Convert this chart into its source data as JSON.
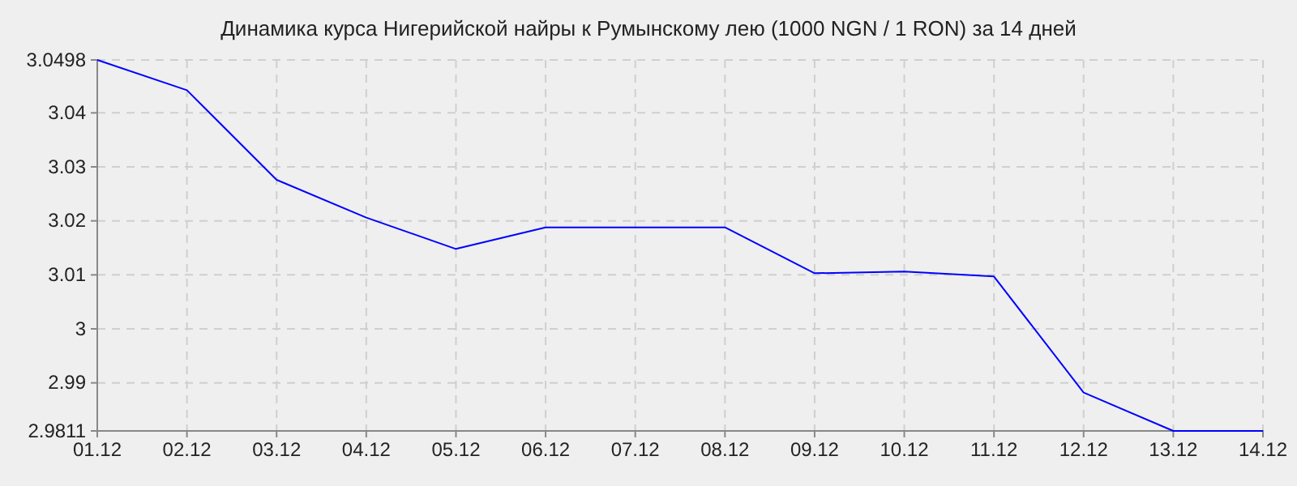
{
  "chart_data": {
    "type": "line",
    "title": "Динамика курса Нигерийской найры к Румынскому лею (1000 NGN / 1 RON) за 14 дней",
    "categories": [
      "01.12",
      "02.12",
      "03.12",
      "04.12",
      "05.12",
      "06.12",
      "07.12",
      "08.12",
      "09.12",
      "10.12",
      "11.12",
      "12.12",
      "13.12",
      "14.12"
    ],
    "series": [
      {
        "color": "#0000ff",
        "values": [
          3.0498,
          3.0442,
          3.0276,
          3.0206,
          3.0148,
          3.0188,
          3.0188,
          3.0188,
          3.0103,
          3.0106,
          3.0097,
          2.9882,
          2.9811,
          2.9811
        ]
      }
    ],
    "ylim": [
      2.9811,
      3.0498
    ],
    "yticks": [
      2.9811,
      2.99,
      3,
      3.01,
      3.02,
      3.03,
      3.04,
      3.0498
    ],
    "grid": true,
    "marker": "none",
    "line_style": "solid"
  }
}
